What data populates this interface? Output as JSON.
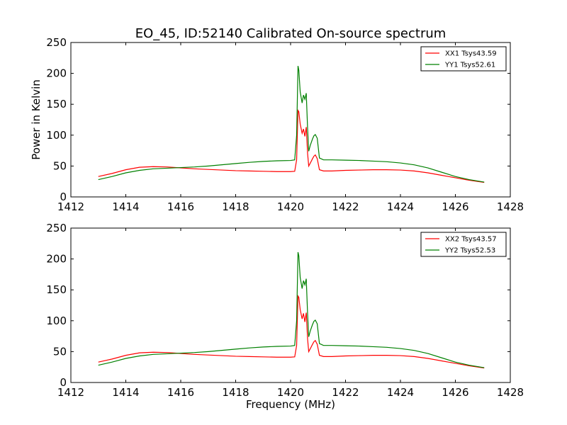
{
  "figure": {
    "title": "EO_45, ID:52140 Calibrated On-source spectrum",
    "xlabel": "Frequency (MHz)",
    "ylabel": "Power in Kelvin"
  },
  "chart_data": [
    {
      "type": "line",
      "title": "EO_45, ID:52140 Calibrated On-source spectrum",
      "xlabel": "",
      "ylabel": "Power in Kelvin",
      "xlim": [
        1412,
        1428
      ],
      "ylim": [
        0,
        250
      ],
      "xticks": [
        "1412",
        "1414",
        "1416",
        "1418",
        "1420",
        "1422",
        "1424",
        "1426",
        "1428"
      ],
      "yticks": [
        "0",
        "50",
        "100",
        "150",
        "200",
        "250"
      ],
      "grid": false,
      "legend_position": "top-right",
      "series": [
        {
          "name": "XX1 Tsys43.59",
          "color": "#ff0000",
          "x": [
            1413,
            1413.5,
            1414,
            1414.5,
            1415,
            1415.5,
            1416,
            1416.5,
            1417,
            1417.5,
            1418,
            1418.5,
            1419,
            1419.5,
            1420,
            1420.15,
            1420.22,
            1420.27,
            1420.3,
            1420.35,
            1420.42,
            1420.47,
            1420.52,
            1420.57,
            1420.62,
            1420.66,
            1420.72,
            1420.8,
            1420.85,
            1420.9,
            1420.97,
            1421.05,
            1421.2,
            1421.5,
            1422,
            1422.5,
            1423,
            1423.5,
            1424,
            1424.5,
            1425,
            1425.5,
            1426,
            1426.5,
            1427.05
          ],
          "y": [
            33,
            38,
            44,
            48,
            49,
            48.5,
            47,
            45.5,
            44.5,
            43.5,
            42.5,
            42,
            41.5,
            41,
            41,
            41.5,
            60,
            140,
            138,
            118,
            103,
            110,
            98,
            113,
            70,
            50,
            55,
            62,
            66,
            68,
            62,
            44,
            42,
            42,
            43,
            43.5,
            44,
            44,
            43.5,
            42,
            39,
            35,
            31,
            27,
            23.5
          ]
        },
        {
          "name": "YY1 Tsys52.61",
          "color": "#008000",
          "x": [
            1413,
            1413.5,
            1414,
            1414.5,
            1415,
            1415.5,
            1416,
            1416.5,
            1417,
            1417.5,
            1418,
            1418.5,
            1419,
            1419.5,
            1420,
            1420.15,
            1420.22,
            1420.27,
            1420.3,
            1420.35,
            1420.42,
            1420.47,
            1420.52,
            1420.57,
            1420.62,
            1420.66,
            1420.72,
            1420.8,
            1420.85,
            1420.9,
            1420.97,
            1421.05,
            1421.2,
            1421.5,
            1422,
            1422.5,
            1423,
            1423.5,
            1424,
            1424.5,
            1425,
            1425.5,
            1426,
            1426.5,
            1427.05
          ],
          "y": [
            28,
            33,
            39,
            43,
            45.5,
            46.5,
            47.5,
            48.5,
            50,
            52,
            54,
            56,
            57.5,
            58.5,
            59,
            60,
            100,
            212,
            205,
            170,
            152,
            165,
            158,
            168,
            110,
            74,
            84,
            94,
            99,
            101,
            95,
            63,
            60,
            60,
            59.5,
            59,
            58,
            57,
            55,
            52,
            47,
            40,
            33,
            28,
            24
          ]
        }
      ]
    },
    {
      "type": "line",
      "title": "",
      "xlabel": "Frequency (MHz)",
      "ylabel": "",
      "xlim": [
        1412,
        1428
      ],
      "ylim": [
        0,
        250
      ],
      "xticks": [
        "1412",
        "1414",
        "1416",
        "1418",
        "1420",
        "1422",
        "1424",
        "1426",
        "1428"
      ],
      "yticks": [
        "0",
        "50",
        "100",
        "150",
        "200",
        "250"
      ],
      "grid": false,
      "legend_position": "top-right",
      "series": [
        {
          "name": "XX2 Tsys43.57",
          "color": "#ff0000",
          "x": [
            1413,
            1413.5,
            1414,
            1414.5,
            1415,
            1415.5,
            1416,
            1416.5,
            1417,
            1417.5,
            1418,
            1418.5,
            1419,
            1419.5,
            1420,
            1420.15,
            1420.22,
            1420.27,
            1420.3,
            1420.35,
            1420.42,
            1420.47,
            1420.52,
            1420.57,
            1420.62,
            1420.66,
            1420.72,
            1420.8,
            1420.85,
            1420.9,
            1420.97,
            1421.05,
            1421.2,
            1421.5,
            1422,
            1422.5,
            1423,
            1423.5,
            1424,
            1424.5,
            1425,
            1425.5,
            1426,
            1426.5,
            1427.05
          ],
          "y": [
            33,
            38,
            44,
            48,
            49,
            48.5,
            47,
            45.5,
            44.5,
            43.5,
            42.5,
            42,
            41.5,
            41,
            41,
            41.5,
            60,
            140,
            138,
            118,
            103,
            112,
            98,
            113,
            70,
            50,
            55,
            62,
            66,
            68,
            62,
            44,
            42,
            42,
            43,
            43.5,
            44,
            44,
            43.5,
            42,
            39,
            35,
            31,
            27,
            23.5
          ]
        },
        {
          "name": "YY2 Tsys52.53",
          "color": "#008000",
          "x": [
            1413,
            1413.5,
            1414,
            1414.5,
            1415,
            1415.5,
            1416,
            1416.5,
            1417,
            1417.5,
            1418,
            1418.5,
            1419,
            1419.5,
            1420,
            1420.15,
            1420.22,
            1420.27,
            1420.3,
            1420.35,
            1420.42,
            1420.47,
            1420.52,
            1420.57,
            1420.62,
            1420.66,
            1420.72,
            1420.8,
            1420.85,
            1420.9,
            1420.97,
            1421.05,
            1421.2,
            1421.5,
            1422,
            1422.5,
            1423,
            1423.5,
            1424,
            1424.5,
            1425,
            1425.5,
            1426,
            1426.5,
            1427.05
          ],
          "y": [
            28,
            33,
            39,
            43,
            45.5,
            46.5,
            47.5,
            48.5,
            50,
            52,
            54,
            56,
            57.5,
            58.5,
            59,
            60,
            100,
            211,
            205,
            170,
            152,
            165,
            158,
            168,
            110,
            74,
            84,
            94,
            99,
            101,
            95,
            63,
            60,
            60,
            59.5,
            59,
            58,
            57,
            55,
            52,
            47,
            40,
            33,
            28,
            24
          ]
        }
      ]
    }
  ]
}
